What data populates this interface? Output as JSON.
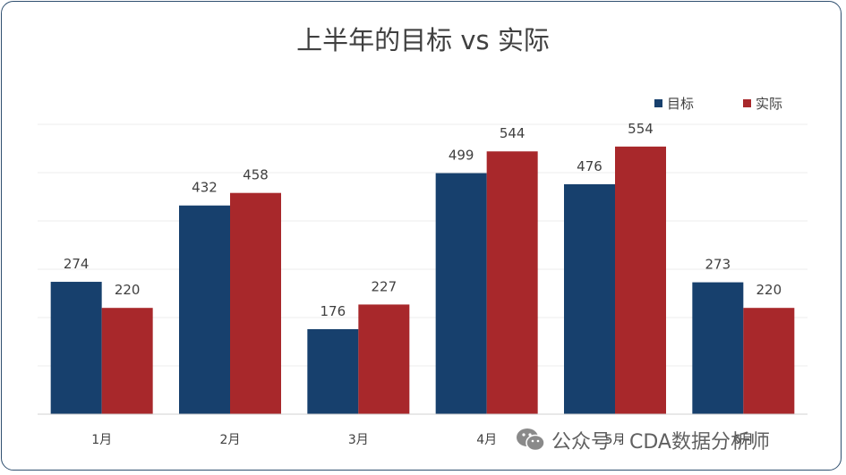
{
  "chart_data": {
    "type": "bar",
    "title": "上半年的目标 vs 实际",
    "categories": [
      "1月",
      "2月",
      "3月",
      "4月",
      "5月",
      "6月"
    ],
    "series": [
      {
        "name": "目标",
        "values": [
          274,
          432,
          176,
          499,
          476,
          273
        ],
        "color": "#17406d"
      },
      {
        "name": "实际",
        "values": [
          220,
          458,
          227,
          544,
          554,
          220
        ],
        "color": "#a8282b"
      }
    ],
    "ylim": [
      0,
      600
    ],
    "grid": true,
    "legend": "top-right",
    "data_labels": true
  },
  "watermark": {
    "icon": "wechat-icon",
    "text": "公众号 · CDA数据分析师"
  }
}
